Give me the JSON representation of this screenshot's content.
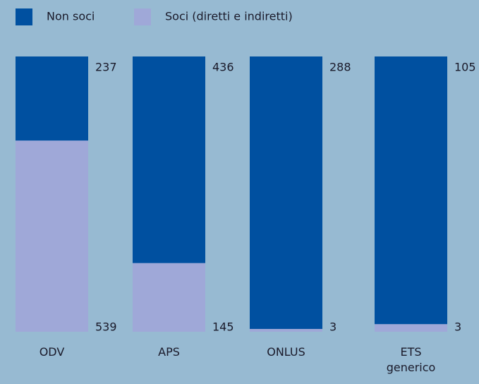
{
  "chart_data": {
    "type": "bar",
    "stacked": true,
    "categories": [
      "ODV",
      "APS",
      "ONLUS",
      "ETS generico"
    ],
    "series": [
      {
        "name": "Non soci",
        "color": "#0050a0",
        "values": [
          237,
          436,
          288,
          105
        ]
      },
      {
        "name": "Soci (diretti e indiretti)",
        "color": "#9fa8d8",
        "values": [
          539,
          145,
          3,
          3
        ]
      }
    ]
  }
}
